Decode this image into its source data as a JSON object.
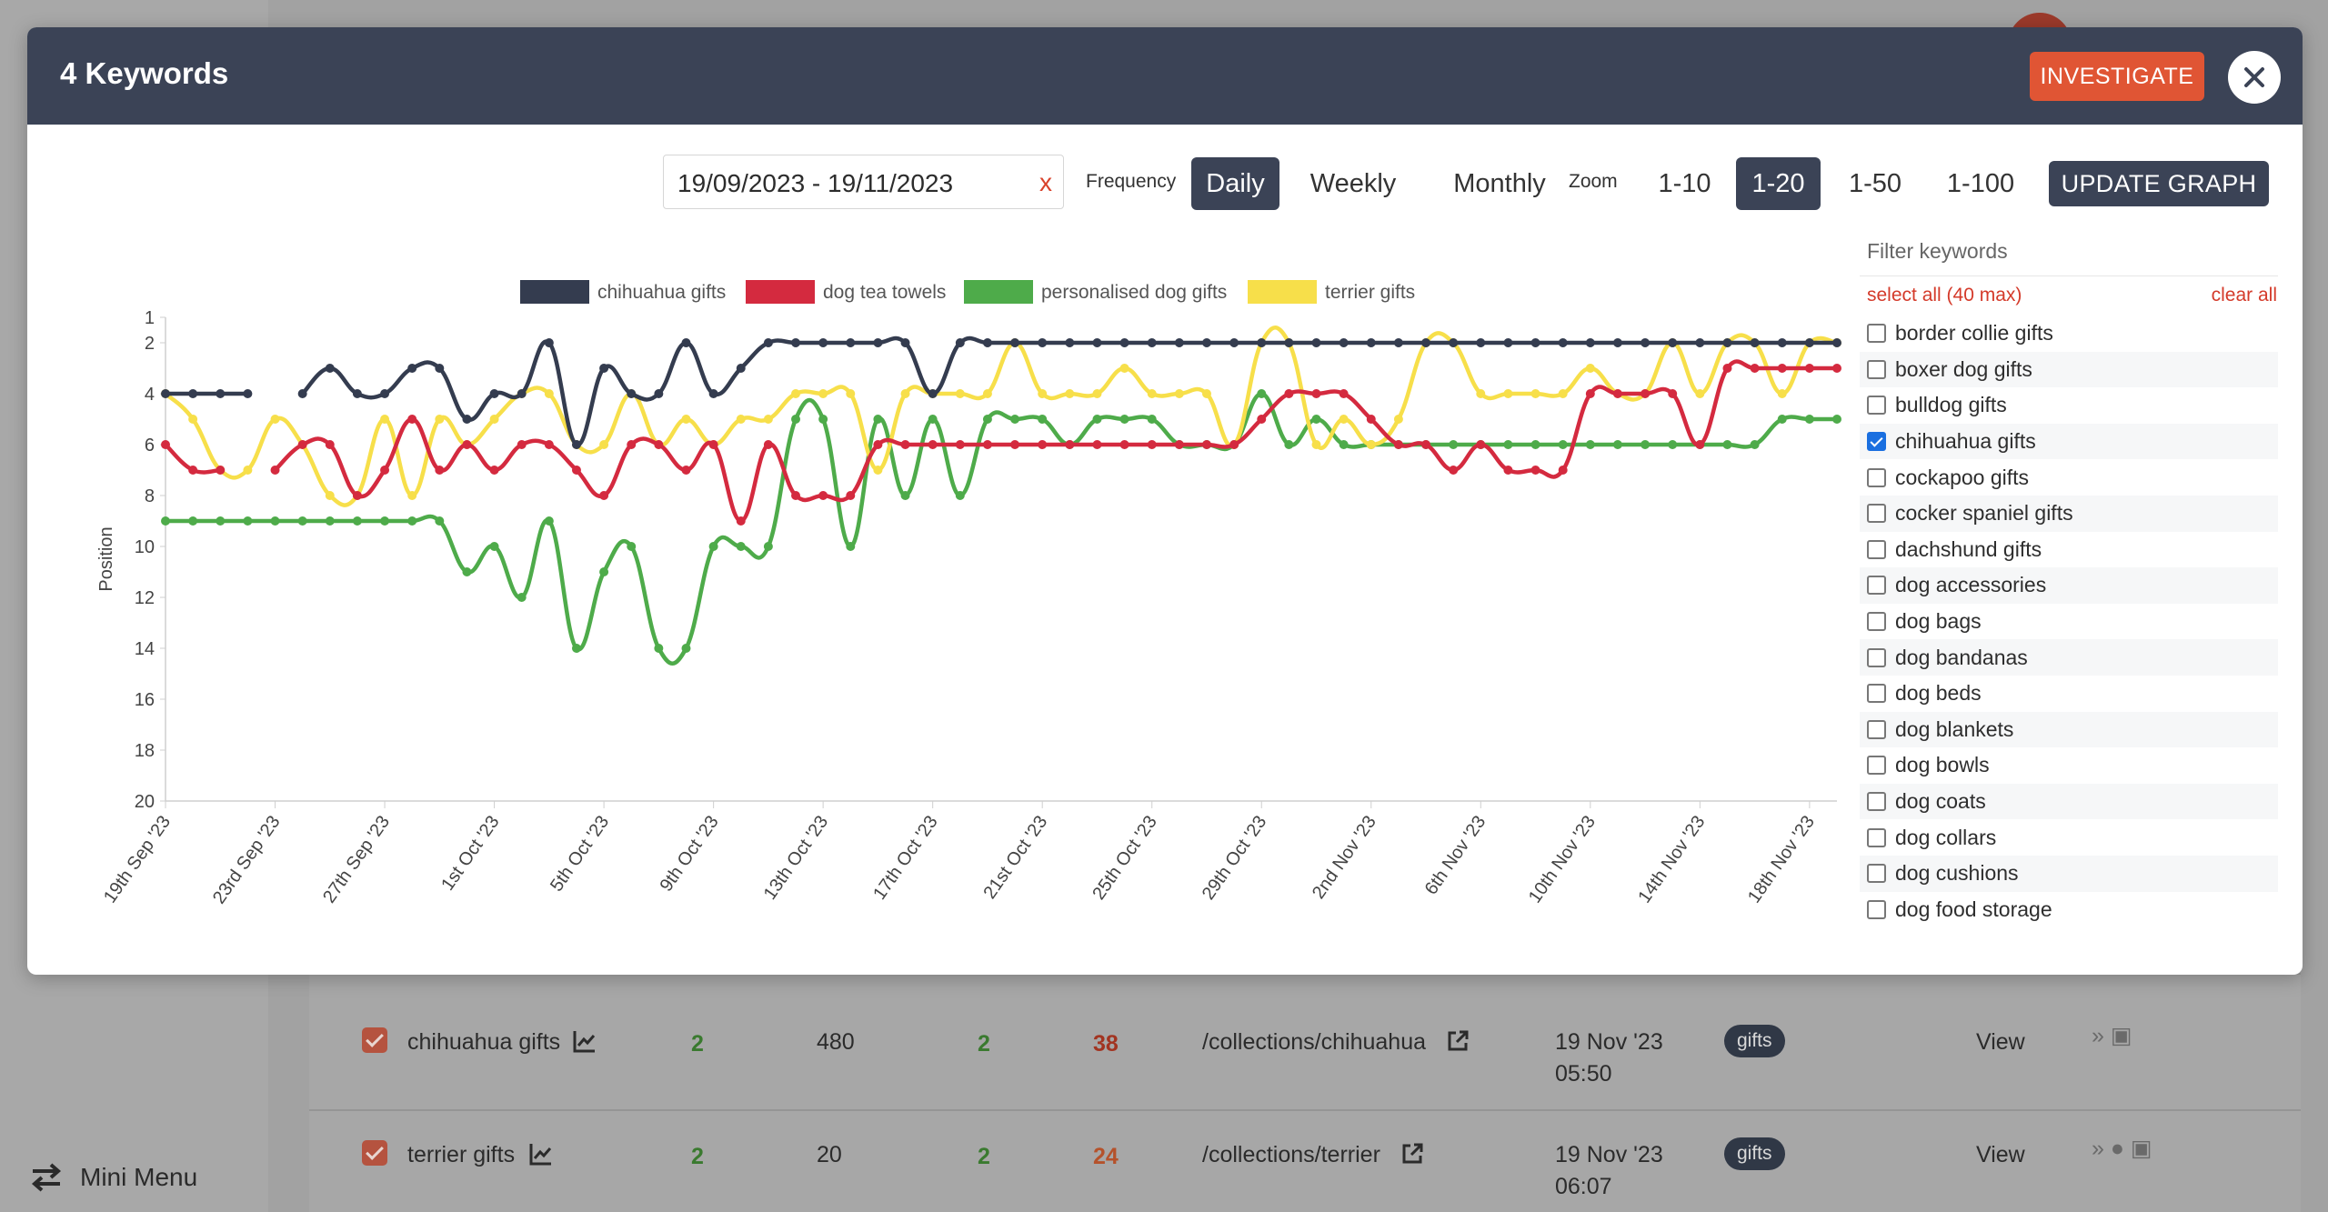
{
  "modal": {
    "title": "4 Keywords",
    "investigate_label": "INVESTIGATE"
  },
  "controls": {
    "date_range": "19/09/2023 - 19/11/2023",
    "date_clear": "x",
    "frequency_label": "Frequency",
    "frequency_options": [
      "Daily",
      "Weekly",
      "Monthly"
    ],
    "frequency_selected": "Daily",
    "zoom_label": "Zoom",
    "zoom_options": [
      "1-10",
      "1-20",
      "1-50",
      "1-100"
    ],
    "zoom_selected": "1-20",
    "update_label": "UPDATE GRAPH"
  },
  "filter": {
    "title": "Filter keywords",
    "select_all": "select all (40 max)",
    "clear_all": "clear all",
    "keywords": [
      {
        "label": "border collie gifts",
        "checked": false
      },
      {
        "label": "boxer dog gifts",
        "checked": false
      },
      {
        "label": "bulldog gifts",
        "checked": false
      },
      {
        "label": "chihuahua gifts",
        "checked": true
      },
      {
        "label": "cockapoo gifts",
        "checked": false
      },
      {
        "label": "cocker spaniel gifts",
        "checked": false
      },
      {
        "label": "dachshund gifts",
        "checked": false
      },
      {
        "label": "dog accessories",
        "checked": false
      },
      {
        "label": "dog bags",
        "checked": false
      },
      {
        "label": "dog bandanas",
        "checked": false
      },
      {
        "label": "dog beds",
        "checked": false
      },
      {
        "label": "dog blankets",
        "checked": false
      },
      {
        "label": "dog bowls",
        "checked": false
      },
      {
        "label": "dog coats",
        "checked": false
      },
      {
        "label": "dog collars",
        "checked": false
      },
      {
        "label": "dog cushions",
        "checked": false
      },
      {
        "label": "dog food storage",
        "checked": false
      }
    ]
  },
  "chart_data": {
    "type": "line",
    "ylabel": "Position",
    "ylim": [
      20,
      1
    ],
    "y_reversed": true,
    "y_ticks": [
      1,
      2,
      4,
      6,
      8,
      10,
      12,
      14,
      16,
      18,
      20
    ],
    "x_tick_labels": [
      "19th Sep '23",
      "23rd Sep '23",
      "27th Sep '23",
      "1st Oct '23",
      "5th Oct '23",
      "9th Oct '23",
      "13th Oct '23",
      "17th Oct '23",
      "21st Oct '23",
      "25th Oct '23",
      "29th Oct '23",
      "2nd Nov '23",
      "6th Nov '23",
      "10th Nov '23",
      "14th Nov '23",
      "18th Nov '23"
    ],
    "legend_position": "top",
    "series": [
      {
        "name": "chihuahua gifts",
        "color": "#343c4f",
        "values": [
          4,
          4,
          4,
          4,
          null,
          4,
          3,
          4,
          4,
          3,
          3,
          5,
          4,
          4,
          2,
          6,
          3,
          4,
          4,
          2,
          4,
          3,
          2,
          2,
          2,
          2,
          2,
          2,
          4,
          2,
          2,
          2,
          2,
          2,
          2,
          2,
          2,
          2,
          2,
          2,
          2,
          2,
          2,
          2,
          2,
          2,
          2,
          2,
          2,
          2,
          2,
          2,
          2,
          2,
          2,
          2,
          2,
          2,
          2,
          2,
          2,
          2
        ]
      },
      {
        "name": "dog tea towels",
        "color": "#d42a3f",
        "values": [
          6,
          7,
          7,
          null,
          7,
          6,
          6,
          8,
          7,
          5,
          7,
          6,
          7,
          6,
          6,
          7,
          8,
          6,
          6,
          7,
          6,
          9,
          6,
          8,
          8,
          8,
          6,
          6,
          6,
          6,
          6,
          6,
          6,
          6,
          6,
          6,
          6,
          6,
          6,
          6,
          5,
          4,
          4,
          4,
          5,
          6,
          6,
          7,
          6,
          7,
          7,
          7,
          4,
          4,
          4,
          4,
          6,
          3,
          3,
          3,
          3,
          3
        ]
      },
      {
        "name": "personalised dog gifts",
        "color": "#4eab4a",
        "values": [
          9,
          9,
          9,
          9,
          9,
          9,
          9,
          9,
          9,
          9,
          9,
          11,
          10,
          12,
          9,
          14,
          11,
          10,
          14,
          14,
          10,
          10,
          10,
          5,
          5,
          10,
          5,
          8,
          5,
          8,
          5,
          5,
          5,
          6,
          5,
          5,
          5,
          6,
          6,
          6,
          4,
          6,
          5,
          6,
          6,
          6,
          6,
          6,
          6,
          6,
          6,
          6,
          6,
          6,
          6,
          6,
          6,
          6,
          6,
          5,
          5,
          5
        ]
      },
      {
        "name": "terrier gifts",
        "color": "#f7df4a",
        "values": [
          4,
          5,
          7,
          7,
          5,
          6,
          8,
          8,
          5,
          8,
          5,
          6,
          5,
          4,
          4,
          6,
          6,
          4,
          6,
          5,
          6,
          5,
          5,
          4,
          4,
          4,
          7,
          4,
          4,
          4,
          4,
          2,
          4,
          4,
          4,
          3,
          4,
          4,
          4,
          6,
          2,
          2,
          6,
          5,
          6,
          5,
          2,
          2,
          4,
          4,
          4,
          4,
          3,
          4,
          4,
          2,
          4,
          2,
          2,
          4,
          2,
          2
        ]
      }
    ]
  },
  "background_table": {
    "rows": [
      {
        "keyword": "chihuahua gifts",
        "pos": "2",
        "volume": "480",
        "best": "2",
        "score": "38",
        "url": "/collections/chihuahua",
        "date": "19 Nov '23",
        "time": "05:50",
        "tag": "gifts",
        "view": "View"
      },
      {
        "keyword": "terrier gifts",
        "pos": "2",
        "volume": "20",
        "best": "2",
        "score": "24",
        "url": "/collections/terrier",
        "date": "19 Nov '23",
        "time": "06:07",
        "tag": "gifts",
        "view": "View"
      }
    ]
  },
  "sidebar": {
    "mini_menu_label": "Mini Menu"
  }
}
